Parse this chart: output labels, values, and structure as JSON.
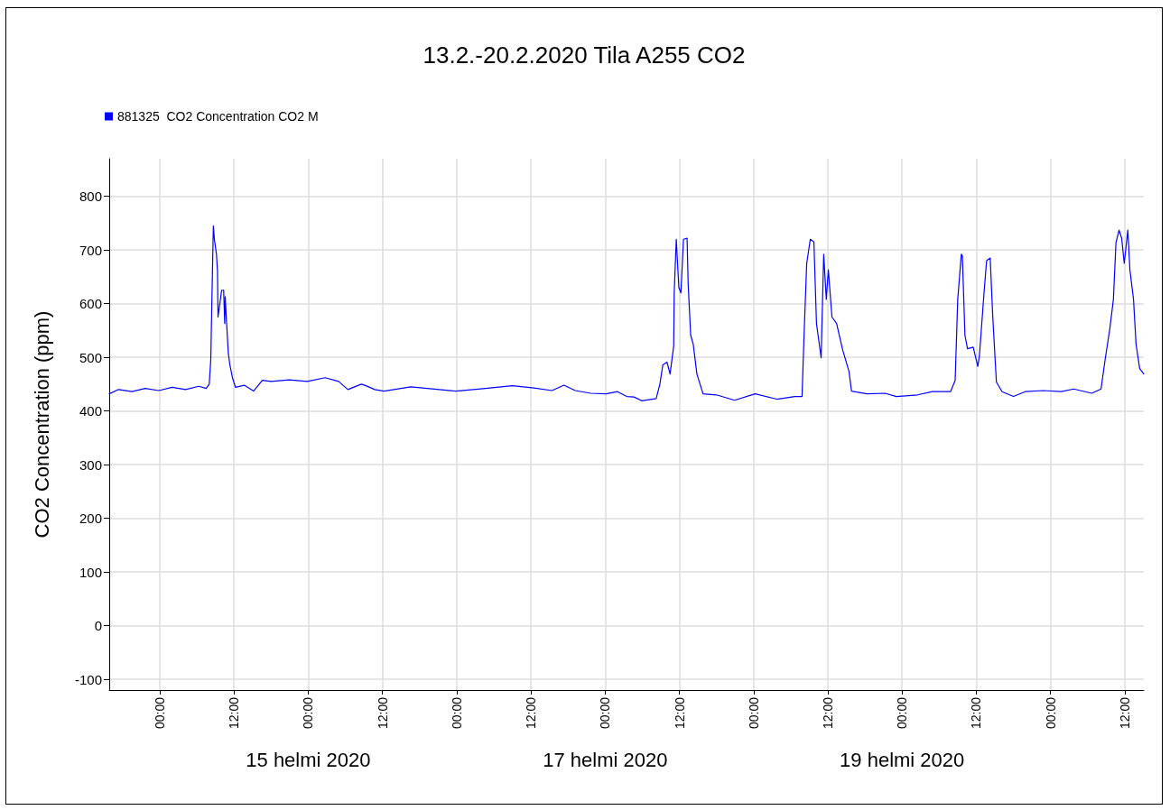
{
  "chart_data": {
    "type": "line",
    "title": "13.2.-20.2.2020 Tila A255 CO2",
    "ylabel": "CO2 Concentration (ppm)",
    "xlim": [
      "2020-02-13T15:50",
      "2020-02-20T15:05"
    ],
    "xticks": [
      {
        "value": "2020-02-14T00:00",
        "label": "00:00"
      },
      {
        "value": "2020-02-14T12:00",
        "label": "12:00"
      },
      {
        "value": "2020-02-15T00:00",
        "label": "00:00"
      },
      {
        "value": "2020-02-15T12:00",
        "label": "12:00"
      },
      {
        "value": "2020-02-16T00:00",
        "label": "00:00"
      },
      {
        "value": "2020-02-16T12:00",
        "label": "12:00"
      },
      {
        "value": "2020-02-17T00:00",
        "label": "00:00"
      },
      {
        "value": "2020-02-17T12:00",
        "label": "12:00"
      },
      {
        "value": "2020-02-18T00:00",
        "label": "00:00"
      },
      {
        "value": "2020-02-18T12:00",
        "label": "12:00"
      },
      {
        "value": "2020-02-19T00:00",
        "label": "00:00"
      },
      {
        "value": "2020-02-19T12:00",
        "label": "12:00"
      },
      {
        "value": "2020-02-20T00:00",
        "label": "00:00"
      },
      {
        "value": "2020-02-20T12:00",
        "label": "12:00"
      }
    ],
    "x2lim": [
      "2020-02-13T15:50",
      "2020-02-20T15:05"
    ],
    "x2ticks": [
      {
        "value": "2020-02-15T00:00",
        "label": "15 helmi 2020"
      },
      {
        "value": "2020-02-17T00:00",
        "label": "17 helmi 2020"
      },
      {
        "value": "2020-02-19T00:00",
        "label": "19 helmi 2020"
      }
    ],
    "ylim": [
      -120,
      870
    ],
    "yticks": [
      -100,
      0,
      100,
      200,
      300,
      400,
      500,
      600,
      700,
      800
    ],
    "grid": true,
    "legend": "top left",
    "marker": "none",
    "line_style": "solid",
    "series": [
      {
        "name": "881325  CO2 Concentration CO2 M",
        "color": "#0000ff",
        "x": [
          "2020-02-13T15:50",
          "2020-02-13T17:20",
          "2020-02-13T19:30",
          "2020-02-13T21:40",
          "2020-02-13T23:50",
          "2020-02-14T02:00",
          "2020-02-14T04:10",
          "2020-02-14T06:20",
          "2020-02-14T07:30",
          "2020-02-14T08:00",
          "2020-02-14T08:15",
          "2020-02-14T08:25",
          "2020-02-14T08:40",
          "2020-02-14T08:50",
          "2020-02-14T09:10",
          "2020-02-14T09:20",
          "2020-02-14T09:25",
          "2020-02-14T09:45",
          "2020-02-14T10:00",
          "2020-02-14T10:20",
          "2020-02-14T10:30",
          "2020-02-14T10:35",
          "2020-02-14T10:45",
          "2020-02-14T11:05",
          "2020-02-14T11:20",
          "2020-02-14T11:45",
          "2020-02-14T12:15",
          "2020-02-14T13:40",
          "2020-02-14T15:10",
          "2020-02-14T16:35",
          "2020-02-14T18:00",
          "2020-02-14T20:55",
          "2020-02-14T23:50",
          "2020-02-15T02:45",
          "2020-02-15T04:55",
          "2020-02-15T06:25",
          "2020-02-15T08:35",
          "2020-02-15T09:20",
          "2020-02-15T10:45",
          "2020-02-15T12:15",
          "2020-02-15T16:35",
          "2020-02-15T23:50",
          "2020-02-16T04:40",
          "2020-02-16T09:00",
          "2020-02-16T12:30",
          "2020-02-16T15:25",
          "2020-02-16T17:20",
          "2020-02-16T19:10",
          "2020-02-16T21:40",
          "2020-02-17T00:10",
          "2020-02-17T02:00",
          "2020-02-17T03:30",
          "2020-02-17T04:40",
          "2020-02-17T05:55",
          "2020-02-17T08:15",
          "2020-02-17T08:50",
          "2020-02-17T09:20",
          "2020-02-17T10:00",
          "2020-02-17T10:30",
          "2020-02-17T11:05",
          "2020-02-17T11:10",
          "2020-02-17T11:30",
          "2020-02-17T11:55",
          "2020-02-17T12:15",
          "2020-02-17T12:40",
          "2020-02-17T13:15",
          "2020-02-17T13:25",
          "2020-02-17T13:50",
          "2020-02-17T14:15",
          "2020-02-17T14:50",
          "2020-02-17T15:50",
          "2020-02-17T18:00",
          "2020-02-17T20:55",
          "2020-02-18T00:15",
          "2020-02-18T03:45",
          "2020-02-18T06:40",
          "2020-02-18T07:50",
          "2020-02-18T08:10",
          "2020-02-18T08:35",
          "2020-02-18T09:10",
          "2020-02-18T09:45",
          "2020-02-18T10:10",
          "2020-02-18T10:55",
          "2020-02-18T11:20",
          "2020-02-18T11:45",
          "2020-02-18T12:05",
          "2020-02-18T12:40",
          "2020-02-18T13:25",
          "2020-02-18T14:25",
          "2020-02-18T15:25",
          "2020-02-18T15:50",
          "2020-02-18T18:20",
          "2020-02-18T21:15",
          "2020-02-18T23:05",
          "2020-02-19T02:30",
          "2020-02-19T04:55",
          "2020-02-19T07:50",
          "2020-02-19T08:35",
          "2020-02-19T09:00",
          "2020-02-19T09:35",
          "2020-02-19T09:45",
          "2020-02-19T10:10",
          "2020-02-19T10:35",
          "2020-02-19T11:30",
          "2020-02-19T12:15",
          "2020-02-19T12:30",
          "2020-02-19T13:15",
          "2020-02-19T13:40",
          "2020-02-19T14:15",
          "2020-02-19T14:40",
          "2020-02-19T15:15",
          "2020-02-19T16:10",
          "2020-02-19T18:00",
          "2020-02-19T19:55",
          "2020-02-19T22:50",
          "2020-02-20T01:45",
          "2020-02-20T03:45",
          "2020-02-20T06:40",
          "2020-02-20T08:10",
          "2020-02-20T08:50",
          "2020-02-20T09:35",
          "2020-02-20T10:10",
          "2020-02-20T10:35",
          "2020-02-20T11:05",
          "2020-02-20T11:30",
          "2020-02-20T11:55",
          "2020-02-20T12:30",
          "2020-02-20T12:50",
          "2020-02-20T13:25",
          "2020-02-20T13:50",
          "2020-02-20T14:25",
          "2020-02-20T15:05"
        ],
        "values": [
          432,
          440,
          436,
          442,
          438,
          444,
          440,
          446,
          442,
          450,
          496,
          600,
          745,
          720,
          692,
          661,
          575,
          603,
          625,
          625,
          563,
          613,
          575,
          508,
          486,
          462,
          444,
          448,
          437,
          457,
          455,
          458,
          455,
          462,
          455,
          440,
          450,
          447,
          440,
          437,
          445,
          437,
          442,
          447,
          443,
          438,
          448,
          438,
          433,
          432,
          436,
          427,
          426,
          419,
          423,
          449,
          486,
          491,
          469,
          521,
          620,
          720,
          630,
          620,
          720,
          722,
          638,
          541,
          524,
          469,
          432,
          430,
          420,
          432,
          422,
          427,
          427,
          544,
          675,
          720,
          715,
          563,
          499,
          692,
          608,
          663,
          575,
          563,
          513,
          474,
          437,
          432,
          433,
          427,
          430,
          436,
          436,
          457,
          608,
          692,
          689,
          541,
          516,
          519,
          483,
          502,
          620,
          680,
          685,
          575,
          454,
          436,
          427,
          436,
          438,
          436,
          441,
          433,
          441,
          496,
          553,
          608,
          714,
          737,
          722,
          675,
          737,
          663,
          608,
          524,
          479,
          469
        ]
      }
    ]
  }
}
